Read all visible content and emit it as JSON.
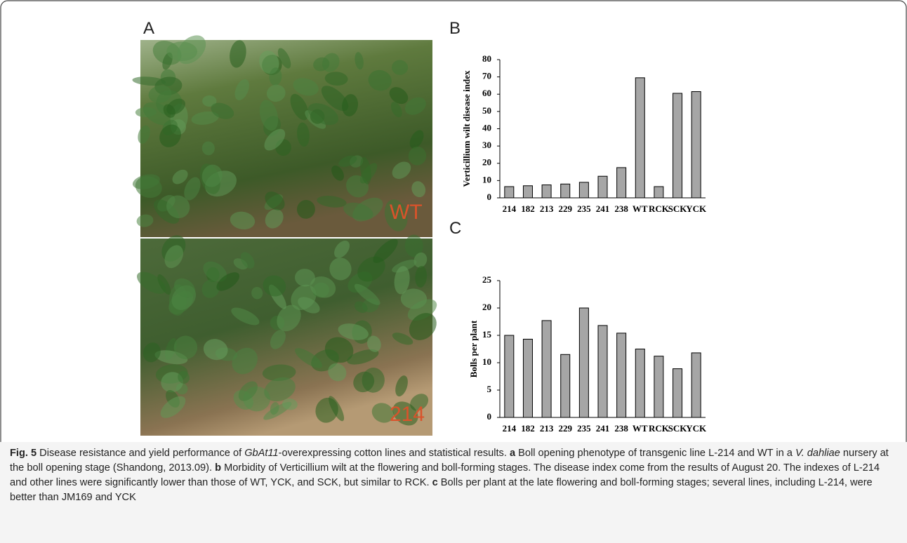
{
  "panels": {
    "a": "A",
    "b": "B",
    "c": "C"
  },
  "photo_labels": {
    "top": "WT",
    "bottom": "214"
  },
  "chart_data": [
    {
      "type": "bar",
      "y_label": "Verticillium wilt disease index",
      "categories": [
        "214",
        "182",
        "213",
        "229",
        "235",
        "241",
        "238",
        "WT",
        "RCK",
        "SCK",
        "YCK"
      ],
      "values": [
        6.5,
        7,
        7.5,
        8,
        9,
        12.5,
        17.5,
        69.5,
        6.5,
        60.5,
        61.5
      ],
      "color": "#a6a6a6",
      "ylim": [
        0,
        80
      ],
      "yticks": [
        0,
        10,
        20,
        30,
        40,
        50,
        60,
        70,
        80
      ]
    },
    {
      "type": "bar",
      "y_label": "Bolls per plant",
      "categories": [
        "214",
        "182",
        "213",
        "229",
        "235",
        "241",
        "238",
        "WT",
        "RCK",
        "SCK",
        "YCK"
      ],
      "values": [
        15,
        14.3,
        17.7,
        11.5,
        20,
        16.8,
        15.4,
        12.5,
        11.2,
        8.9,
        11.8
      ],
      "color": "#a6a6a6",
      "ylim": [
        0,
        25
      ],
      "yticks": [
        0,
        5,
        10,
        15,
        20,
        25
      ]
    }
  ],
  "caption": {
    "segments": [
      {
        "text": "Fig. 5",
        "style": "bold"
      },
      {
        "text": " Disease resistance and yield performance of ",
        "style": "normal"
      },
      {
        "text": "GbAt11",
        "style": "italic"
      },
      {
        "text": "-overexpressing cotton lines and statistical results. ",
        "style": "normal"
      },
      {
        "text": "a",
        "style": "bold"
      },
      {
        "text": " Boll opening phenotype of transgenic line L-214 and WT in a ",
        "style": "normal"
      },
      {
        "text": "V. dahliae",
        "style": "italic"
      },
      {
        "text": " nursery at the boll opening stage (Shandong, 2013.09). ",
        "style": "normal"
      },
      {
        "text": "b",
        "style": "bold"
      },
      {
        "text": " Morbidity of Verticillium wilt at the flowering and boll-forming stages. The disease index come from the results of August 20. The indexes of L-214 and other lines were significantly lower than those of WT, YCK, and SCK, but similar to RCK. ",
        "style": "normal"
      },
      {
        "text": "c",
        "style": "bold"
      },
      {
        "text": " Bolls per plant at the late flowering and boll-forming stages; several lines, including L-214, were better than JM169 and YCK",
        "style": "normal"
      }
    ]
  }
}
